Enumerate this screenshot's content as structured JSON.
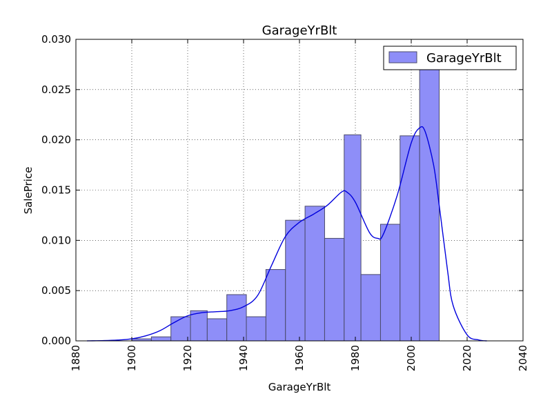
{
  "chart_data": {
    "type": "bar",
    "title": "GarageYrBlt",
    "xlabel": "GarageYrBlt",
    "ylabel": "SalePrice",
    "xlim": [
      1880,
      2040
    ],
    "ylim": [
      0,
      0.03
    ],
    "x_ticks": [
      1880,
      1900,
      1920,
      1940,
      1960,
      1980,
      2000,
      2020,
      2040
    ],
    "x_tick_labels": [
      "1880",
      "1900",
      "1920",
      "1940",
      "1960",
      "1980",
      "2000",
      "2020",
      "2040"
    ],
    "y_ticks": [
      0,
      0.005,
      0.01,
      0.015,
      0.02,
      0.025,
      0.03
    ],
    "y_tick_labels": [
      "0.000",
      "0.005",
      "0.010",
      "0.015",
      "0.020",
      "0.025",
      "0.030"
    ],
    "grid": true,
    "legend": {
      "position": "top-right",
      "entries": [
        "GarageYrBlt"
      ]
    },
    "colors": {
      "bar_fill": "#8e8ef8",
      "bar_edge": "#4a4a6a",
      "kde_line": "#0000dd"
    },
    "bin_edges": [
      1900,
      1907,
      1914,
      1921,
      1927,
      1934,
      1941,
      1948,
      1955,
      1962,
      1969,
      1976,
      1982,
      1989,
      1996,
      2003,
      2010
    ],
    "bin_heights": [
      0.0002,
      0.0004,
      0.0024,
      0.003,
      0.0022,
      0.0046,
      0.0024,
      0.0071,
      0.012,
      0.0134,
      0.0102,
      0.0205,
      0.0066,
      0.0116,
      0.0204,
      0.027
    ],
    "kde": {
      "x": [
        1884,
        1890,
        1895,
        1900,
        1905,
        1910,
        1915,
        1920,
        1925,
        1930,
        1935,
        1940,
        1945,
        1950,
        1955,
        1960,
        1965,
        1970,
        1975,
        1977,
        1980,
        1985,
        1988,
        1990,
        1995,
        2000,
        2003,
        2005,
        2008,
        2010,
        2013,
        2015,
        2020,
        2024,
        2027
      ],
      "y": [
        0.0,
        3e-05,
        8e-05,
        0.0002,
        0.0005,
        0.001,
        0.0018,
        0.0025,
        0.0028,
        0.0029,
        0.003,
        0.0034,
        0.0045,
        0.0075,
        0.0104,
        0.0118,
        0.0126,
        0.0135,
        0.0148,
        0.0148,
        0.0138,
        0.0108,
        0.0102,
        0.0106,
        0.0145,
        0.0197,
        0.0212,
        0.0208,
        0.0175,
        0.0135,
        0.007,
        0.0035,
        0.0006,
        0.0001,
        0.0
      ]
    }
  }
}
